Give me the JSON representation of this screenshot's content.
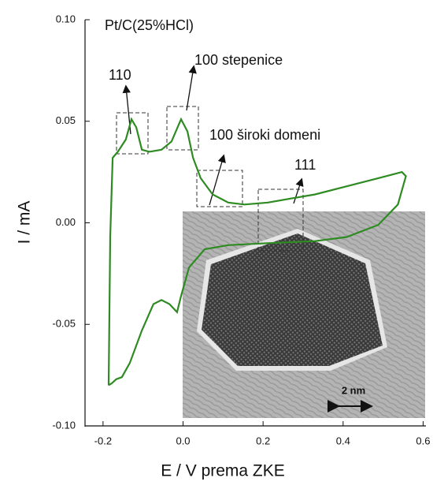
{
  "chart_data": {
    "type": "line",
    "x_label": "E / V prema ZKE",
    "y_label": "I / mA",
    "annotations": [
      "Pt/C(25%HCl)",
      "110",
      "100 stepenice",
      "100 široki domeni",
      "111",
      "2 nm"
    ],
    "color": "#2e8b22",
    "x": [
      -0.186,
      -0.182,
      -0.176,
      -0.163,
      -0.143,
      -0.129,
      -0.117,
      -0.103,
      -0.084,
      -0.054,
      -0.029,
      -0.005,
      0.011,
      0.025,
      0.044,
      0.074,
      0.113,
      0.153,
      0.212,
      0.271,
      0.33,
      0.409,
      0.488,
      0.547,
      0.557,
      0.537,
      0.488,
      0.409,
      0.33,
      0.212,
      0.113,
      0.054,
      0.015,
      -0.005,
      -0.015,
      -0.034,
      -0.054,
      -0.074,
      -0.103,
      -0.133,
      -0.153,
      -0.167,
      -0.178,
      -0.186
    ],
    "values": [
      -0.08,
      -0.007,
      0.032,
      0.035,
      0.041,
      0.051,
      0.047,
      0.036,
      0.035,
      0.036,
      0.04,
      0.051,
      0.045,
      0.032,
      0.022,
      0.014,
      0.01,
      0.009,
      0.01,
      0.012,
      0.014,
      0.018,
      0.022,
      0.025,
      0.023,
      0.009,
      -0.001,
      -0.007,
      -0.009,
      -0.01,
      -0.011,
      -0.013,
      -0.022,
      -0.036,
      -0.044,
      -0.04,
      -0.038,
      -0.04,
      -0.053,
      -0.069,
      -0.076,
      -0.077,
      -0.079,
      -0.08
    ],
    "xlim": [
      -0.245,
      0.605
    ],
    "ylim": [
      -0.1,
      0.1
    ],
    "xticks": [
      -0.2,
      {
        "value": 0.0,
        "label": "0.0"
      },
      0.2,
      0.4,
      0.6
    ],
    "yticks": [
      {
        "value": 0.1,
        "label": "0.10"
      },
      {
        "value": 0.05,
        "label": "0.05"
      },
      {
        "value": 0.0,
        "label": "0.00"
      },
      {
        "value": -0.05,
        "label": "-0.05"
      },
      {
        "value": -0.1,
        "label": "-0.10"
      }
    ]
  }
}
